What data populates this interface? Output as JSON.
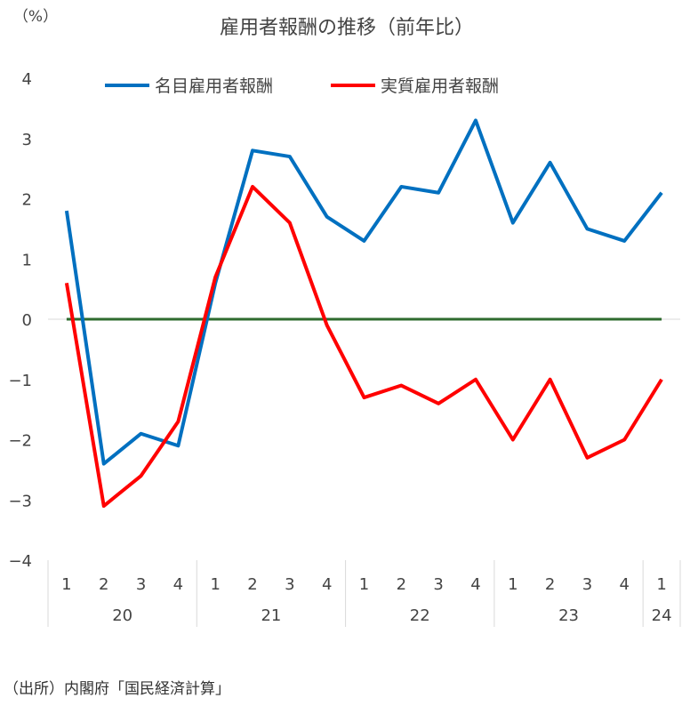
{
  "chart_data": {
    "type": "line",
    "title": "雇用者報酬の推移（前年比）",
    "ylabel": "（%）",
    "xlabel": "",
    "ylim": [
      -4,
      4
    ],
    "yticks": [
      4,
      3,
      2,
      1,
      0,
      -1,
      -2,
      -3,
      -4
    ],
    "yticklabels": [
      "4",
      "3",
      "2",
      "1",
      "0",
      "−1",
      "−2",
      "−3",
      "−4"
    ],
    "quarters": [
      "1",
      "2",
      "3",
      "4",
      "1",
      "2",
      "3",
      "4",
      "1",
      "2",
      "3",
      "4",
      "1",
      "2",
      "3",
      "4",
      "1"
    ],
    "years": [
      {
        "label": "20",
        "count": 4
      },
      {
        "label": "21",
        "count": 4
      },
      {
        "label": "22",
        "count": 4
      },
      {
        "label": "23",
        "count": 4
      },
      {
        "label": "24",
        "count": 1
      }
    ],
    "legend_position": "top",
    "grid": false,
    "zero_line_color": "#2e6b2e",
    "series": [
      {
        "name": "名目雇用者報酬",
        "color": "#0070c0",
        "values": [
          1.8,
          -2.4,
          -1.9,
          -2.1,
          0.6,
          2.8,
          2.7,
          1.7,
          1.3,
          2.2,
          2.1,
          3.3,
          1.6,
          2.6,
          1.5,
          1.3,
          2.1
        ]
      },
      {
        "name": "実質雇用者報酬",
        "color": "#ff0000",
        "values": [
          0.6,
          -3.1,
          -2.6,
          -1.7,
          0.7,
          2.2,
          1.6,
          -0.1,
          -1.3,
          -1.1,
          -1.4,
          -1.0,
          -2.0,
          -1.0,
          -2.3,
          -2.0,
          -1.0
        ]
      }
    ]
  },
  "source": "（出所）内閣府「国民経済計算」"
}
